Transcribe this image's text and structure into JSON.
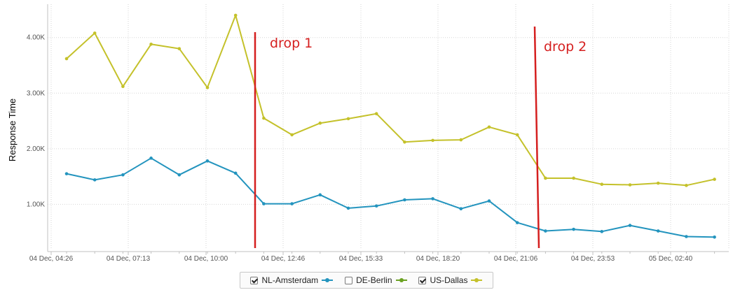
{
  "chart_data": {
    "type": "line",
    "ylabel": "Response Time",
    "xlabel": "",
    "ylim": [
      200,
      4600
    ],
    "yticks": [
      1000,
      2000,
      3000,
      4000
    ],
    "ytick_labels": [
      "1.00K",
      "2.00K",
      "3.00K",
      "4.00K"
    ],
    "x_tick_labels": [
      "04 Dec, 04:26",
      "04 Dec, 07:13",
      "04 Dec, 10:00",
      "04 Dec, 12:46",
      "04 Dec, 15:33",
      "04 Dec, 18:20",
      "04 Dec, 21:06",
      "04 Dec, 23:53",
      "05 Dec, 02:40"
    ],
    "grid": true,
    "legend_position": "bottom-center",
    "series": [
      {
        "name": "NL-Amsterdam",
        "checked": true,
        "color": "#2394be",
        "values": [
          1550,
          1440,
          1530,
          1830,
          1530,
          1780,
          1560,
          1010,
          1010,
          1170,
          930,
          970,
          1080,
          1100,
          920,
          1060,
          670,
          520,
          550,
          510,
          620,
          520,
          420,
          410
        ]
      },
      {
        "name": "DE-Berlin",
        "checked": false,
        "color": "#6aa121",
        "values": []
      },
      {
        "name": "US-Dallas",
        "checked": true,
        "color": "#c4c12a",
        "values": [
          3620,
          4080,
          3120,
          3880,
          3800,
          3100,
          4400,
          2550,
          2250,
          2460,
          2540,
          2630,
          2120,
          2150,
          2160,
          2390,
          2250,
          1470,
          1470,
          1360,
          1350,
          1380,
          1340,
          1450
        ]
      }
    ],
    "annotations": [
      {
        "text": "drop 1",
        "color": "#d51f1f"
      },
      {
        "text": "drop 2",
        "color": "#d51f1f"
      }
    ]
  }
}
